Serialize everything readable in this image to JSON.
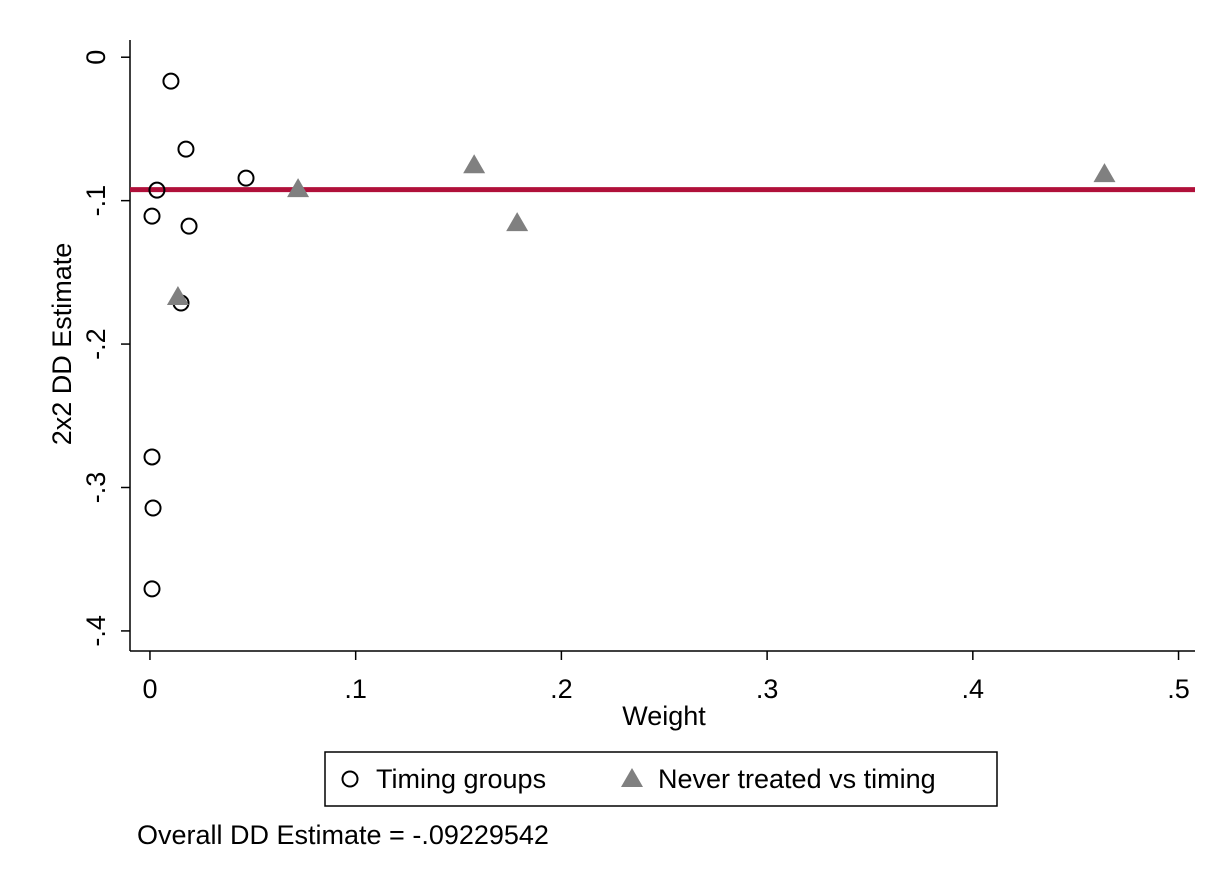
{
  "chart_data": {
    "type": "scatter",
    "xlabel": "Weight",
    "ylabel": "2x2 DD Estimate",
    "annotation": "Overall DD Estimate = -.09229542",
    "hline": -0.09229542,
    "hline_color": "#b0103a",
    "xlim": [
      -0.0097,
      0.508
    ],
    "ylim": [
      -0.414,
      0.012
    ],
    "xticks": [
      0,
      {
        "value": 0.1,
        "label": ".1"
      },
      {
        "value": 0.2,
        "label": ".2"
      },
      {
        "value": 0.3,
        "label": ".3"
      },
      {
        "value": 0.4,
        "label": ".4"
      },
      {
        "value": 0.5,
        "label": ".5"
      }
    ],
    "yticks": [
      0,
      {
        "value": -0.1,
        "label": "-.1"
      },
      {
        "value": -0.2,
        "label": "-.2"
      },
      {
        "value": -0.3,
        "label": "-.3"
      },
      {
        "value": -0.4,
        "label": "-.4"
      }
    ],
    "grid": false,
    "legend": "bottom",
    "series": [
      {
        "name": "Timing groups",
        "color": "#000000",
        "marker": "circle",
        "x": [
          0.0102,
          0.0175,
          0.0467,
          0.0034,
          0.001,
          0.019,
          0.0151,
          0.001,
          0.0015,
          0.001
        ],
        "values": [
          -0.0167,
          -0.0641,
          -0.0843,
          -0.0927,
          -0.1108,
          -0.1178,
          -0.1714,
          -0.2787,
          -0.3143,
          -0.3707
        ]
      },
      {
        "name": "Never treated vs timing",
        "color": "#808080",
        "marker": "triangle",
        "x": [
          0.072,
          0.1576,
          0.1785,
          0.0136,
          0.464
        ],
        "values": [
          -0.092,
          -0.0753,
          -0.1157,
          -0.1672,
          -0.0815
        ]
      }
    ]
  }
}
